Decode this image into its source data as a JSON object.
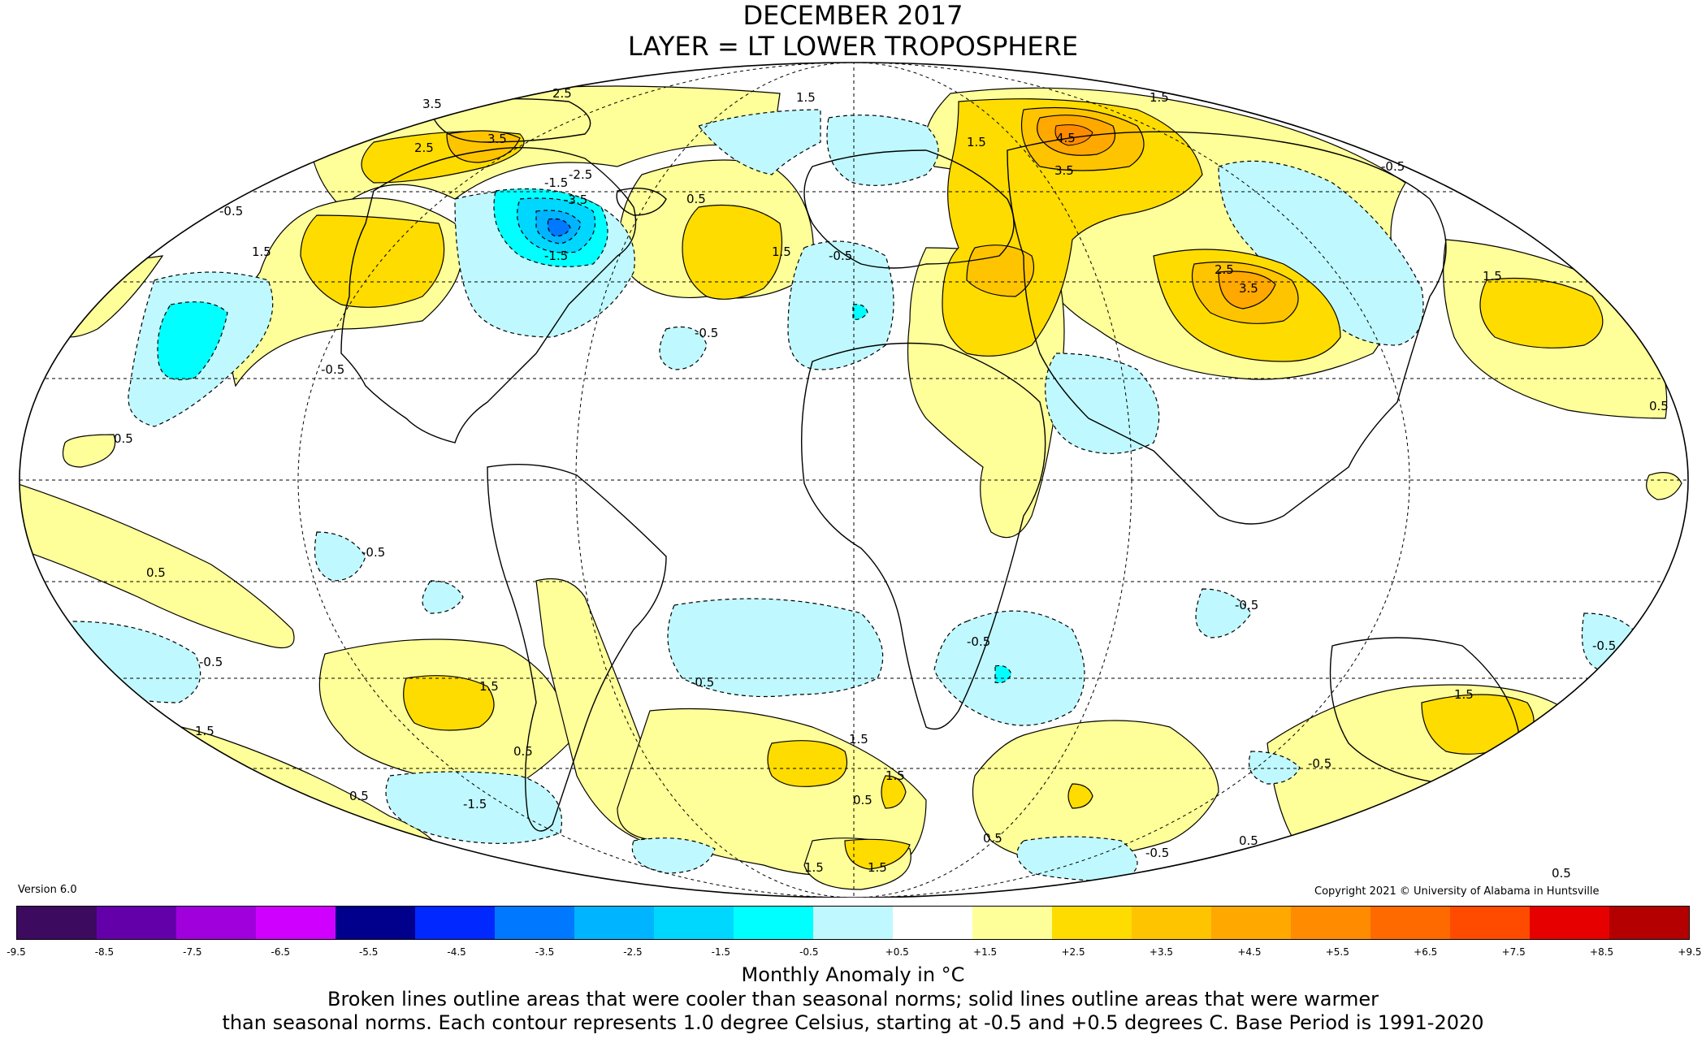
{
  "title": "DECEMBER 2017",
  "subtitle": "LAYER = LT LOWER TROPOSPHERE",
  "version": "Version 6.0",
  "copyright": "Copyright 2021 © University of Alabama in Huntsville",
  "colorbar": {
    "colors": [
      "#3c0a5f",
      "#6400aa",
      "#a000dc",
      "#d000ff",
      "#00008c",
      "#0028ff",
      "#0078ff",
      "#00b4ff",
      "#00d7ff",
      "#00ffff",
      "#bff9ff",
      "#ffffff",
      "#ffff99",
      "#ffdc00",
      "#ffc400",
      "#ffa800",
      "#ff8c00",
      "#ff6a00",
      "#ff4b00",
      "#e60000",
      "#b40000"
    ],
    "ticks": [
      "-9.5",
      "-8.5",
      "-7.5",
      "-6.5",
      "-5.5",
      "-4.5",
      "-3.5",
      "-2.5",
      "-1.5",
      "-0.5",
      "+0.5",
      "+1.5",
      "+2.5",
      "+3.5",
      "+4.5",
      "+5.5",
      "+6.5",
      "+7.5",
      "+8.5",
      "+9.5"
    ]
  },
  "caption": {
    "units": "Monthly Anomaly in °C",
    "line1": "Broken lines outline areas that were cooler than seasonal norms; solid lines outline areas that were warmer",
    "line2": "than seasonal norms. Each contour represents 1.0 degree Celsius, starting at -0.5 and +0.5 degrees C. Base Period is 1991-2020"
  },
  "contour_labels": [
    "2.5",
    "3.5",
    "2.5",
    "3.5",
    "1.5",
    "1.5",
    "1.5",
    "-0.5",
    "-1.5",
    "-2.5",
    "-3.5",
    "-1.5",
    "0.5",
    "-0.5",
    "1.5",
    "-0.5",
    "4.5",
    "3.5",
    "1.5",
    "-0.5",
    "2.5",
    "3.5",
    "1.5",
    "-0.5",
    "0.5",
    "-0.5",
    "0.5",
    "-0.5",
    "1.5",
    "0.5",
    "1.5",
    "-0.5",
    "-0.5",
    "-0.5",
    "-1.5",
    "0.5",
    "1.5",
    "1.5",
    "0.5",
    "1.5",
    "1.5",
    "0.5",
    "-0.5",
    "0.5",
    "1.5",
    "-0.5",
    "-0.5",
    "0.5",
    "0.5"
  ]
}
